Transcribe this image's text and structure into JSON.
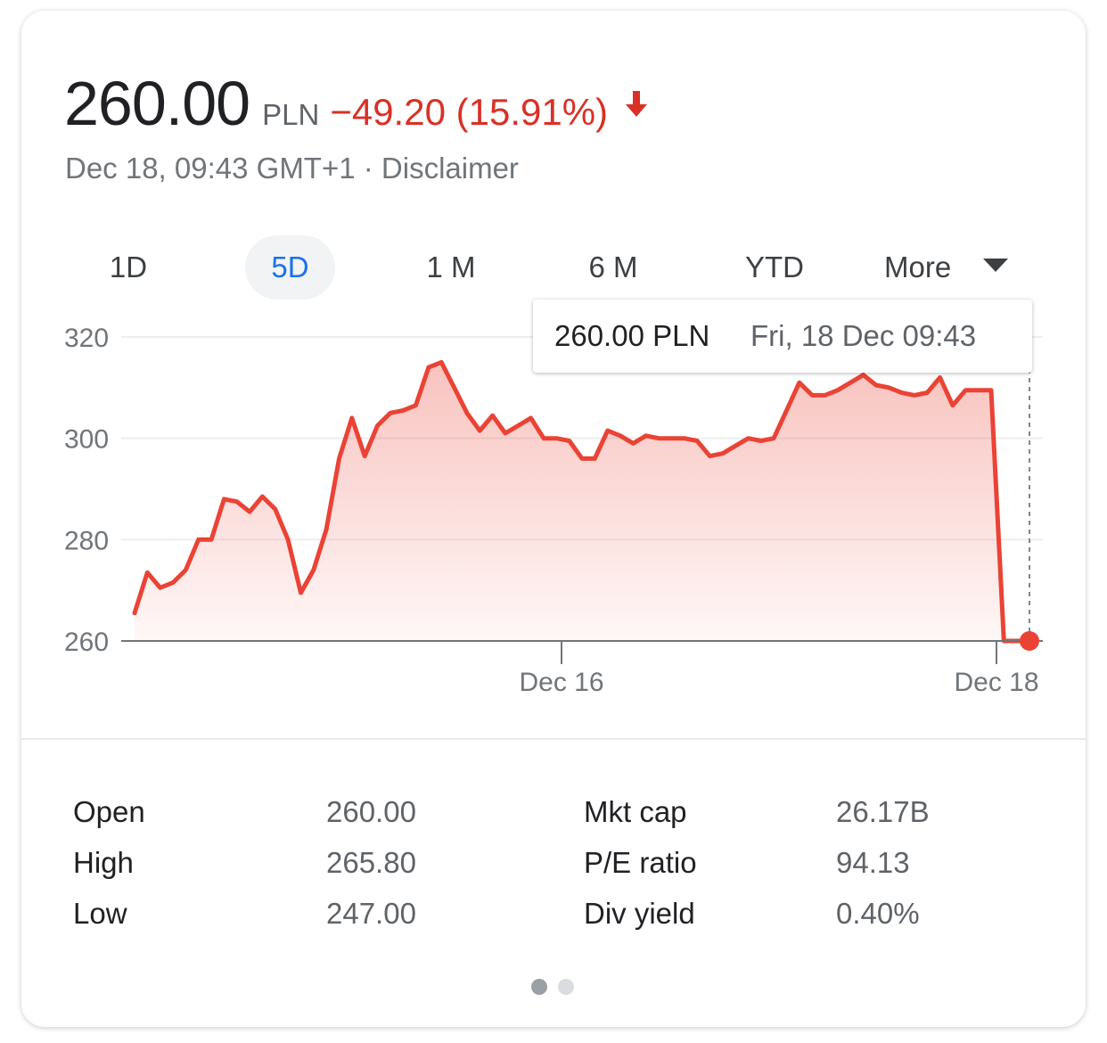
{
  "quote": {
    "price": "260.00",
    "currency": "PLN",
    "change": "−49.20 (15.91%)",
    "timestamp": "Dec 18, 09:43 GMT+1 · Disclaimer",
    "direction_icon": "arrow-down-icon",
    "negative_color": "#d93025"
  },
  "tabs": [
    {
      "label": "1D",
      "selected": false
    },
    {
      "label": "5D",
      "selected": true
    },
    {
      "label": "1 M",
      "selected": false
    },
    {
      "label": "6 M",
      "selected": false
    },
    {
      "label": "YTD",
      "selected": false
    }
  ],
  "more_label": "More",
  "tooltip": {
    "price": "260.00 PLN",
    "date": "Fri, 18 Dec 09:43"
  },
  "chart_data": {
    "type": "area",
    "yticks": [
      320,
      300,
      280,
      260
    ],
    "ytick_labels": [
      "320",
      "300",
      "280",
      "260"
    ],
    "ylim": [
      260,
      320
    ],
    "xtick_labels": [
      "Dec 16",
      "Dec 18"
    ],
    "line_color": "#ea4335",
    "series": [
      {
        "values": [
          265.5,
          273.5,
          270.5,
          271.5,
          274,
          280,
          280,
          288,
          287.5,
          285.5,
          288.5,
          286,
          280,
          269.5,
          274,
          282,
          296,
          304,
          296.5,
          302.5,
          305,
          305.5,
          306.5,
          314,
          315,
          310,
          305,
          301.5,
          304.5,
          301,
          302.5,
          304,
          300,
          300,
          299.5,
          296,
          296,
          301.5,
          300.5,
          299,
          300.5,
          300,
          300,
          300,
          299.5,
          296.5,
          297,
          298.5,
          300,
          299.5,
          300,
          305.5,
          311,
          308.5,
          308.5,
          309.5,
          311,
          312.5,
          310.5,
          310,
          309,
          308.5,
          309,
          312,
          306.5,
          309.5,
          309.5,
          309.5,
          260,
          260,
          260
        ]
      }
    ]
  },
  "stats": [
    {
      "label": "Open",
      "value": "260.00"
    },
    {
      "label": "High",
      "value": "265.80"
    },
    {
      "label": "Low",
      "value": "247.00"
    },
    {
      "label": "Mkt cap",
      "value": "26.17B"
    },
    {
      "label": "P/E ratio",
      "value": "94.13"
    },
    {
      "label": "Div yield",
      "value": "0.40%"
    }
  ],
  "pagination": {
    "active_color": "#9aa0a6",
    "inactive_color": "#dadce0"
  }
}
